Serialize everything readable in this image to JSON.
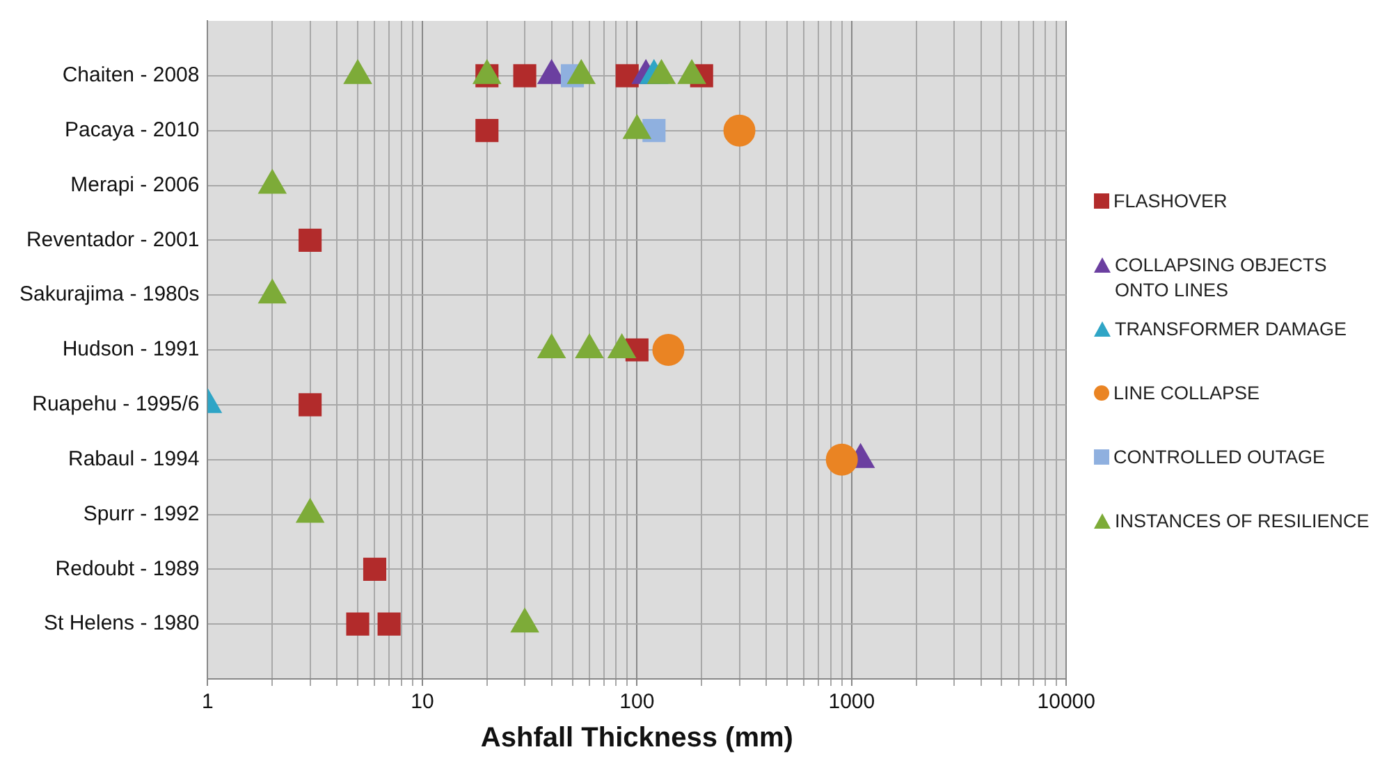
{
  "chart_data": {
    "type": "scatter",
    "orientation": "horizontal",
    "xlabel": "Ashfall Thickness (mm)",
    "categories": [
      "Chaiten - 2008",
      "Pacaya - 2010",
      "Merapi - 2006",
      "Reventador - 2001",
      "Sakurajima - 1980s",
      "Hudson - 1991",
      "Ruapehu - 1995/6",
      "Rabaul - 1994",
      "Spurr - 1992",
      "Redoubt - 1989",
      "St Helens - 1980"
    ],
    "log": "x",
    "xlim": [
      1,
      10000
    ],
    "xticks": [
      1,
      {
        "value": 2,
        "label": null
      },
      {
        "value": 3,
        "label": null
      },
      {
        "value": 4,
        "label": null
      },
      {
        "value": 5,
        "label": null
      },
      {
        "value": 6,
        "label": null
      },
      {
        "value": 7,
        "label": null
      },
      {
        "value": 8,
        "label": null
      },
      {
        "value": 9,
        "label": null
      },
      10,
      {
        "value": 20,
        "label": null
      },
      {
        "value": 30,
        "label": null
      },
      {
        "value": 40,
        "label": null
      },
      {
        "value": 50,
        "label": null
      },
      {
        "value": 60,
        "label": null
      },
      {
        "value": 70,
        "label": null
      },
      {
        "value": 80,
        "label": null
      },
      {
        "value": 90,
        "label": null
      },
      100,
      {
        "value": 200,
        "label": null
      },
      {
        "value": 300,
        "label": null
      },
      {
        "value": 400,
        "label": null
      },
      {
        "value": 500,
        "label": null
      },
      {
        "value": 600,
        "label": null
      },
      {
        "value": 700,
        "label": null
      },
      {
        "value": 800,
        "label": null
      },
      {
        "value": 900,
        "label": null
      },
      1000,
      {
        "value": 2000,
        "label": null
      },
      {
        "value": 3000,
        "label": null
      },
      {
        "value": 4000,
        "label": null
      },
      {
        "value": 5000,
        "label": null
      },
      {
        "value": 6000,
        "label": null
      },
      {
        "value": 7000,
        "label": null
      },
      {
        "value": 8000,
        "label": null
      },
      {
        "value": 9000,
        "label": null
      },
      10000
    ],
    "grid": true,
    "legend": "right",
    "series": [
      {
        "name": "FLASHOVER",
        "color": "#b22b2b",
        "marker": "square",
        "x": [
          "Chaiten - 2008",
          "Chaiten - 2008",
          "Chaiten - 2008",
          "Chaiten - 2008",
          "Pacaya - 2010",
          "Reventador - 2001",
          "Hudson - 1991",
          "Ruapehu - 1995/6",
          "Redoubt - 1989",
          "St Helens - 1980",
          "St Helens - 1980"
        ],
        "values": [
          20,
          30,
          90,
          200,
          20,
          3,
          100,
          3,
          6,
          5,
          7
        ]
      },
      {
        "name": "COLLAPSING OBJECTS ONTO LINES",
        "color": "#6b3fa0",
        "marker": "triangle",
        "x": [
          "Chaiten - 2008",
          "Chaiten - 2008",
          "Rabaul - 1994"
        ],
        "values": [
          40,
          110,
          1100
        ]
      },
      {
        "name": "TRANSFORMER DAMAGE",
        "color": "#2fa5c6",
        "marker": "triangle",
        "x": [
          "Chaiten - 2008",
          "Ruapehu - 1995/6"
        ],
        "values": [
          120,
          1
        ]
      },
      {
        "name": "LINE COLLAPSE",
        "color": "#ea8423",
        "marker": "circle",
        "x": [
          "Pacaya - 2010",
          "Hudson - 1991",
          "Rabaul - 1994"
        ],
        "values": [
          300,
          140,
          900
        ]
      },
      {
        "name": "CONTROLLED OUTAGE",
        "color": "#8fb0df",
        "marker": "square",
        "x": [
          "Chaiten - 2008",
          "Pacaya - 2010"
        ],
        "values": [
          50,
          120
        ]
      },
      {
        "name": "INSTANCES OF RESILIENCE",
        "color": "#7dab38",
        "marker": "triangle",
        "x": [
          "Chaiten - 2008",
          "Chaiten - 2008",
          "Chaiten - 2008",
          "Chaiten - 2008",
          "Chaiten - 2008",
          "Pacaya - 2010",
          "Merapi - 2006",
          "Sakurajima - 1980s",
          "Hudson - 1991",
          "Hudson - 1991",
          "Hudson - 1991",
          "Spurr - 1992",
          "St Helens - 1980"
        ],
        "values": [
          5,
          20,
          55,
          130,
          180,
          100,
          2,
          2,
          40,
          60,
          85,
          3,
          30
        ]
      }
    ]
  }
}
